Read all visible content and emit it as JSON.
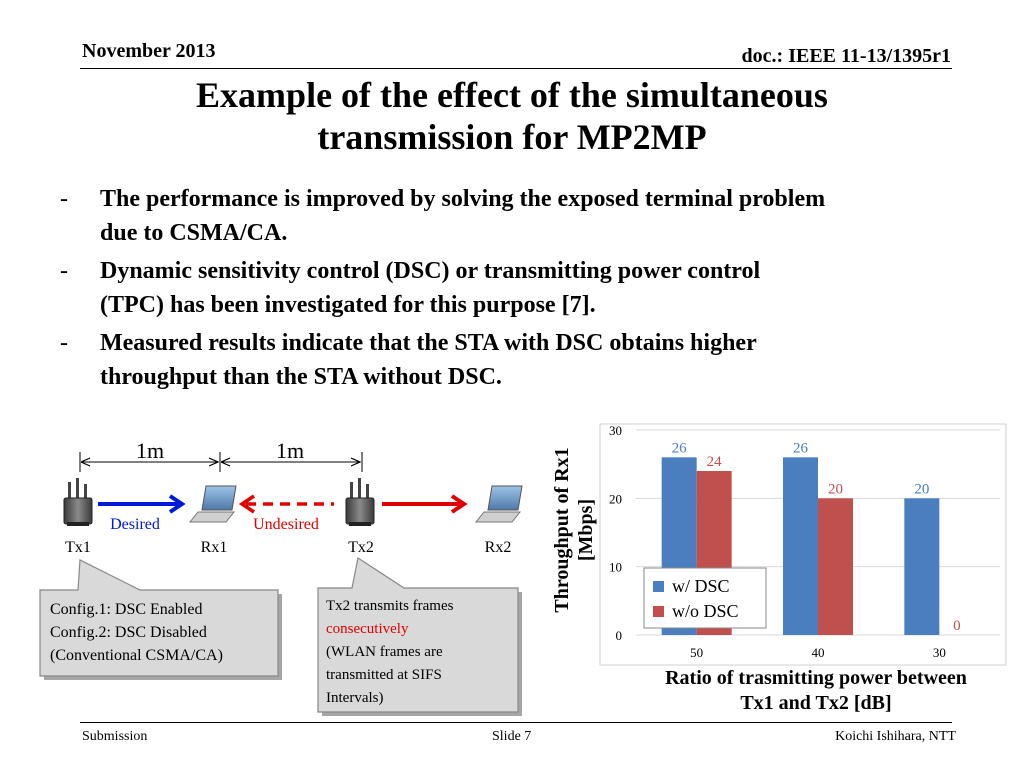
{
  "header": {
    "date": "November 2013",
    "doc": "doc.: IEEE 11-13/1395r1"
  },
  "title": {
    "line1": "Example of the effect of the simultaneous",
    "line2": "transmission for MP2MP"
  },
  "bullets": [
    {
      "line1": "The performance is improved by solving the exposed terminal problem",
      "line2": "due to CSMA/CA."
    },
    {
      "line1": "Dynamic sensitivity control (DSC) or transmitting power control",
      "line2": "(TPC) has been investigated for this purpose [7]."
    },
    {
      "line1": "Measured results indicate that the STA with DSC obtains higher",
      "line2": "throughput than the STA without DSC."
    }
  ],
  "bullet_marker": "-",
  "diagram": {
    "distance1": "1m",
    "distance2": "1m",
    "desired": "Desired",
    "undesired": "Undesired",
    "nodes": [
      "Tx1",
      "Rx1",
      "Tx2",
      "Rx2"
    ],
    "callout1": [
      "Config.1: DSC Enabled",
      "Config.2: DSC Disabled",
      "(Conventional CSMA/CA)"
    ],
    "callout2": {
      "line1": "Tx2 transmits frames",
      "highlight": "consecutively",
      "line3": "(WLAN frames are",
      "line4": "transmitted at SIFS",
      "line5": "Intervals)"
    },
    "colors": {
      "desired": "#0018d8",
      "undesired": "#e00000",
      "callout_fill": "#d9d9d9"
    }
  },
  "chart_data": {
    "type": "bar",
    "categories": [
      "50",
      "40",
      "30"
    ],
    "series": [
      {
        "name": "w/ DSC",
        "values": [
          26,
          26,
          20
        ],
        "color": "#4a7ebf"
      },
      {
        "name": "w/o DSC",
        "values": [
          24,
          20,
          0
        ],
        "color": "#c0504d"
      }
    ],
    "ylim": [
      0,
      30
    ],
    "yticks": [
      0,
      10,
      20,
      30
    ],
    "ylabel_line1": "Throughput of Rx1",
    "ylabel_line2": "[Mbps]",
    "xlabel_line1": "Ratio of trasmitting power between",
    "xlabel_line2": "Tx1 and Tx2 [dB]",
    "grid": true,
    "legend_position": "bottom-left"
  },
  "footer": {
    "left": "Submission",
    "center": "Slide 7",
    "right": "Koichi Ishihara, NTT"
  }
}
